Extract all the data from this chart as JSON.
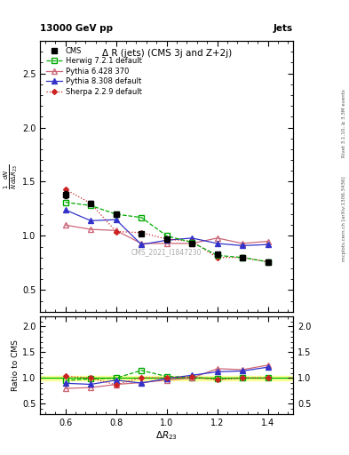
{
  "title_main": "Δ R (jets) (CMS 3j and Z+2j)",
  "header_left": "13000 GeV pp",
  "header_right": "Jets",
  "watermark": "CMS_2021_I1847230",
  "right_label_top": "Rivet 3.1.10, ≥ 3.3M events",
  "right_label_bot": "mcplots.cern.ch [arXiv:1306.3436]",
  "ylabel_main": "$\\frac{1}{N}\\frac{dN}{d\\Delta R_{23}}$",
  "ylabel_ratio": "Ratio to CMS",
  "xlabel": "$\\Delta R_{23}$",
  "xlim": [
    0.5,
    1.5
  ],
  "ylim_main": [
    0.3,
    2.8
  ],
  "ylim_ratio": [
    0.3,
    2.2
  ],
  "yticks_main": [
    0.5,
    1.0,
    1.5,
    2.0,
    2.5
  ],
  "yticks_ratio": [
    0.5,
    1.0,
    1.5,
    2.0
  ],
  "x_data": [
    0.6,
    0.7,
    0.8,
    0.9,
    1.0,
    1.1,
    1.2,
    1.3,
    1.4
  ],
  "cms": {
    "label": "CMS",
    "y": [
      1.38,
      1.3,
      1.2,
      1.02,
      0.97,
      0.93,
      0.83,
      0.8,
      0.76
    ],
    "yerr": [
      0.03,
      0.02,
      0.02,
      0.02,
      0.02,
      0.02,
      0.02,
      0.02,
      0.02
    ],
    "color": "black",
    "marker": "s",
    "markersize": 4,
    "linestyle": "-"
  },
  "herwig": {
    "label": "Herwig 7.2.1 default",
    "y": [
      1.31,
      1.28,
      1.2,
      1.17,
      1.0,
      0.94,
      0.82,
      0.8,
      0.76
    ],
    "color": "#00aa00",
    "marker": "s",
    "markersize": 4,
    "markerfacecolor": "none",
    "linestyle": "--"
  },
  "pythia6": {
    "label": "Pythia 6.428 370",
    "y": [
      1.1,
      1.06,
      1.05,
      0.93,
      0.93,
      0.93,
      0.98,
      0.93,
      0.95
    ],
    "color": "#cc6677",
    "marker": "^",
    "markersize": 4,
    "markerfacecolor": "none",
    "linestyle": "-"
  },
  "pythia8": {
    "label": "Pythia 8.308 default",
    "y": [
      1.24,
      1.14,
      1.15,
      0.92,
      0.96,
      0.98,
      0.93,
      0.91,
      0.92
    ],
    "color": "#3333cc",
    "marker": "^",
    "markersize": 4,
    "linestyle": "-"
  },
  "sherpa": {
    "label": "Sherpa 2.2.9 default",
    "y": [
      1.43,
      1.3,
      1.04,
      1.03,
      0.97,
      0.95,
      0.8,
      0.8,
      0.76
    ],
    "color": "#cc2222",
    "marker": "D",
    "markersize": 3,
    "linestyle": ":"
  },
  "cms_band_color": "#ffff99",
  "cms_line_color": "#00bb00",
  "cms_band_half": 0.04
}
